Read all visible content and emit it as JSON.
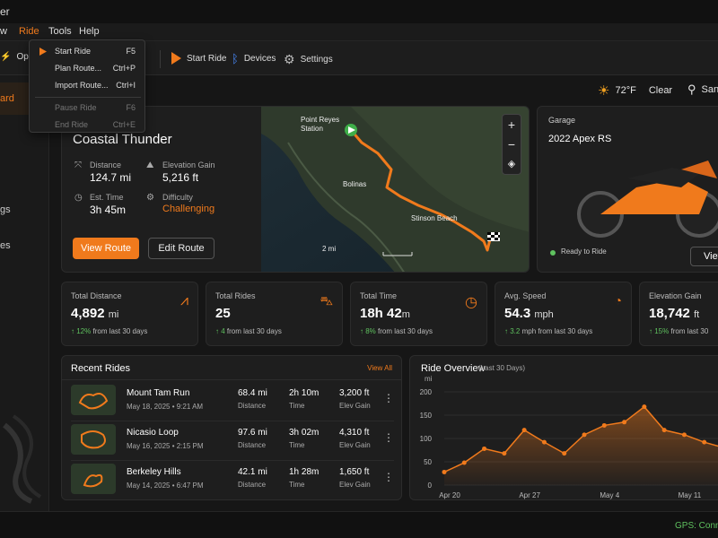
{
  "window": {
    "title_fragment": "er"
  },
  "menubar": {
    "items": [
      "w",
      "Ride",
      "Tools",
      "Help"
    ]
  },
  "ride_menu": {
    "items": [
      {
        "label": "Start Ride",
        "shortcut": "F5",
        "enabled": true
      },
      {
        "label": "Plan Route...",
        "shortcut": "Ctrl+P",
        "enabled": true
      },
      {
        "label": "Import Route...",
        "shortcut": "Ctrl+I",
        "enabled": true
      },
      {
        "label": "Pause Ride",
        "shortcut": "F6",
        "enabled": false
      },
      {
        "label": "End Ride",
        "shortcut": "Ctrl+E",
        "enabled": false
      }
    ]
  },
  "toolbar": {
    "open_label": "Open",
    "partial_label": "e",
    "start_ride_label": "Start Ride",
    "devices_label": "Devices",
    "settings_label": "Settings"
  },
  "sidebar": {
    "items": [
      "ard",
      "gs",
      "es"
    ]
  },
  "header": {
    "temperature": "72°F",
    "condition": "Clear",
    "location_fragment": "San"
  },
  "route": {
    "name": "Coastal Thunder",
    "distance_label": "Distance",
    "distance": "124.7 mi",
    "elev_label": "Elevation Gain",
    "elev": "5,216 ft",
    "time_label": "Est. Time",
    "time": "3h 45m",
    "difficulty_label": "Difficulty",
    "difficulty": "Challenging",
    "view_button": "View Route",
    "edit_button": "Edit Route"
  },
  "map": {
    "labels": [
      "Point Reyes Station",
      "Bolinas",
      "Stinson Beach"
    ],
    "scale": "2 mi"
  },
  "garage": {
    "title": "Garage",
    "bike": "2022 Apex RS",
    "status": "Ready to Ride",
    "view_button": "View"
  },
  "stats": [
    {
      "title": "Total Distance",
      "value": "4,892",
      "unit": "mi",
      "delta": "12%",
      "delta_text": "from last 30 days"
    },
    {
      "title": "Total Rides",
      "value": "25",
      "unit": "",
      "delta": "4",
      "delta_text": "from last 30 days"
    },
    {
      "title": "Total Time",
      "value": "18h 42",
      "unit": "m",
      "delta": "8%",
      "delta_text": "from last 30 days"
    },
    {
      "title": "Avg. Speed",
      "value": "54.3",
      "unit": "mph",
      "delta": "3.2",
      "delta_text": "mph from last 30 days"
    },
    {
      "title": "Elevation Gain",
      "value": "18,742",
      "unit": "ft",
      "delta": "15%",
      "delta_text": "from last 30"
    }
  ],
  "recent": {
    "title": "Recent Rides",
    "view_all": "View All",
    "rides": [
      {
        "name": "Mount Tam Run",
        "date": "May 18, 2025",
        "time_of_day": "9:21 AM",
        "distance": "68.4 mi",
        "duration": "2h 10m",
        "elev": "3,200 ft"
      },
      {
        "name": "Nicasio Loop",
        "date": "May 16, 2025",
        "time_of_day": "2:15 PM",
        "distance": "97.6 mi",
        "duration": "3h 02m",
        "elev": "4,310 ft"
      },
      {
        "name": "Berkeley Hills",
        "date": "May 14, 2025",
        "time_of_day": "6:47 PM",
        "distance": "42.1 mi",
        "duration": "1h 28m",
        "elev": "1,650 ft"
      }
    ],
    "col_labels": {
      "distance": "Distance",
      "time": "Time",
      "elev": "Elev Gain"
    }
  },
  "chart_data": {
    "type": "area",
    "title": "Ride Overview",
    "subtitle": "(Last 30 Days)",
    "ylabel": "mi",
    "ylim": [
      0,
      200
    ],
    "yticks": [
      0,
      50,
      100,
      150,
      200
    ],
    "xticks": [
      "Apr 20",
      "Apr 27",
      "May 4",
      "May 11"
    ],
    "x": [
      0,
      1,
      2,
      3,
      4,
      5,
      6,
      7,
      8,
      9,
      10,
      11,
      12,
      13,
      14
    ],
    "values": [
      28,
      48,
      78,
      68,
      118,
      92,
      68,
      108,
      128,
      135,
      168,
      118,
      108,
      92,
      80
    ],
    "color": "#f07a1c"
  },
  "status": {
    "gps": "GPS: Conne"
  },
  "colors": {
    "accent": "#f07a1c",
    "positive": "#5fc25f"
  }
}
